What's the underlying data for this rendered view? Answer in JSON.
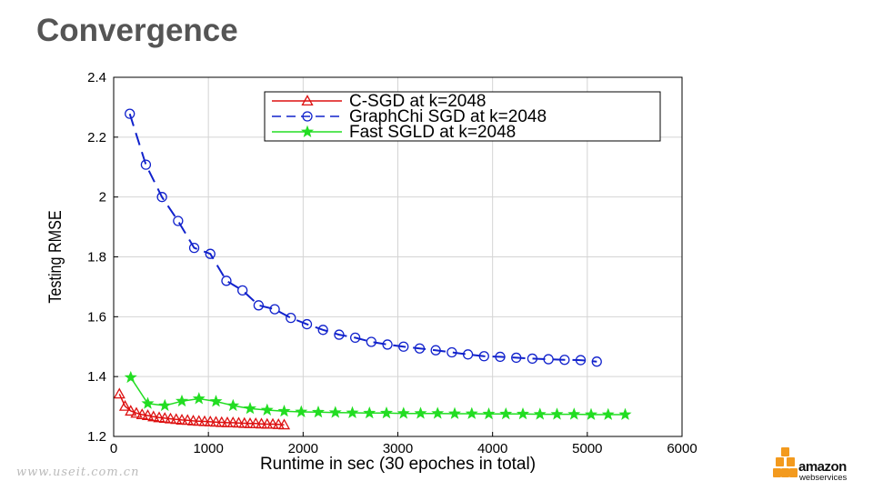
{
  "slide": {
    "title": "Convergence",
    "watermark": "www.useit.com.cn",
    "logo_word": "amazon",
    "logo_sub": "webservices",
    "logo_icon": "aws-cubes-icon",
    "logo_color": "#f39a1e"
  },
  "chart_data": {
    "type": "line",
    "title": "",
    "xlabel": "Runtime in sec (30 epoches in total)",
    "ylabel": "Testing RMSE",
    "xlim": [
      0,
      6000
    ],
    "ylim": [
      1.2,
      2.4
    ],
    "xticks": [
      0,
      1000,
      2000,
      3000,
      4000,
      5000,
      6000
    ],
    "yticks": [
      1.2,
      1.4,
      1.6,
      1.8,
      2,
      2.2,
      2.4
    ],
    "xtick_labels": [
      "0",
      "1000",
      "2000",
      "3000",
      "4000",
      "5000",
      "6000"
    ],
    "ytick_labels": [
      "1.2",
      "1.4",
      "1.6",
      "1.8",
      "2",
      "2.2",
      "2.4"
    ],
    "grid": true,
    "legend_position": "top-right",
    "series": [
      {
        "name": "C-SGD at k=2048",
        "color": "#dd1111",
        "marker": "triangle",
        "dash": "solid",
        "x": [
          60,
          120,
          180,
          240,
          300,
          360,
          420,
          480,
          540,
          600,
          660,
          720,
          780,
          840,
          900,
          960,
          1020,
          1080,
          1140,
          1200,
          1260,
          1320,
          1380,
          1440,
          1500,
          1560,
          1620,
          1680,
          1740,
          1800
        ],
        "y": [
          1.342,
          1.301,
          1.285,
          1.278,
          1.273,
          1.27,
          1.266,
          1.263,
          1.261,
          1.259,
          1.257,
          1.255,
          1.254,
          1.252,
          1.251,
          1.25,
          1.249,
          1.248,
          1.247,
          1.246,
          1.246,
          1.245,
          1.244,
          1.243,
          1.243,
          1.242,
          1.241,
          1.241,
          1.24,
          1.239
        ]
      },
      {
        "name": "GraphChi SGD at k=2048",
        "color": "#1122cc",
        "marker": "circle",
        "dash": "dashed",
        "x": [
          170,
          340,
          510,
          680,
          850,
          1020,
          1190,
          1360,
          1530,
          1700,
          1870,
          2040,
          2210,
          2380,
          2550,
          2720,
          2890,
          3060,
          3230,
          3400,
          3570,
          3740,
          3910,
          4080,
          4250,
          4420,
          4590,
          4760,
          4930,
          5100
        ],
        "y": [
          2.278,
          2.108,
          2.0,
          1.92,
          1.83,
          1.81,
          1.72,
          1.688,
          1.638,
          1.625,
          1.596,
          1.575,
          1.556,
          1.54,
          1.53,
          1.516,
          1.507,
          1.5,
          1.494,
          1.488,
          1.481,
          1.474,
          1.468,
          1.466,
          1.463,
          1.46,
          1.458,
          1.456,
          1.455,
          1.45
        ]
      },
      {
        "name": "Fast SGLD at k=2048",
        "color": "#22dd22",
        "marker": "star",
        "dash": "solid",
        "x": [
          180,
          360,
          540,
          720,
          900,
          1080,
          1260,
          1440,
          1620,
          1800,
          1980,
          2160,
          2340,
          2520,
          2700,
          2880,
          3060,
          3240,
          3420,
          3600,
          3780,
          3960,
          4140,
          4320,
          4500,
          4680,
          4860,
          5040,
          5220,
          5400
        ],
        "y": [
          1.397,
          1.31,
          1.303,
          1.318,
          1.326,
          1.317,
          1.303,
          1.293,
          1.288,
          1.284,
          1.282,
          1.281,
          1.28,
          1.279,
          1.278,
          1.278,
          1.277,
          1.277,
          1.277,
          1.276,
          1.276,
          1.275,
          1.275,
          1.275,
          1.274,
          1.274,
          1.274,
          1.273,
          1.273,
          1.273
        ]
      }
    ]
  }
}
